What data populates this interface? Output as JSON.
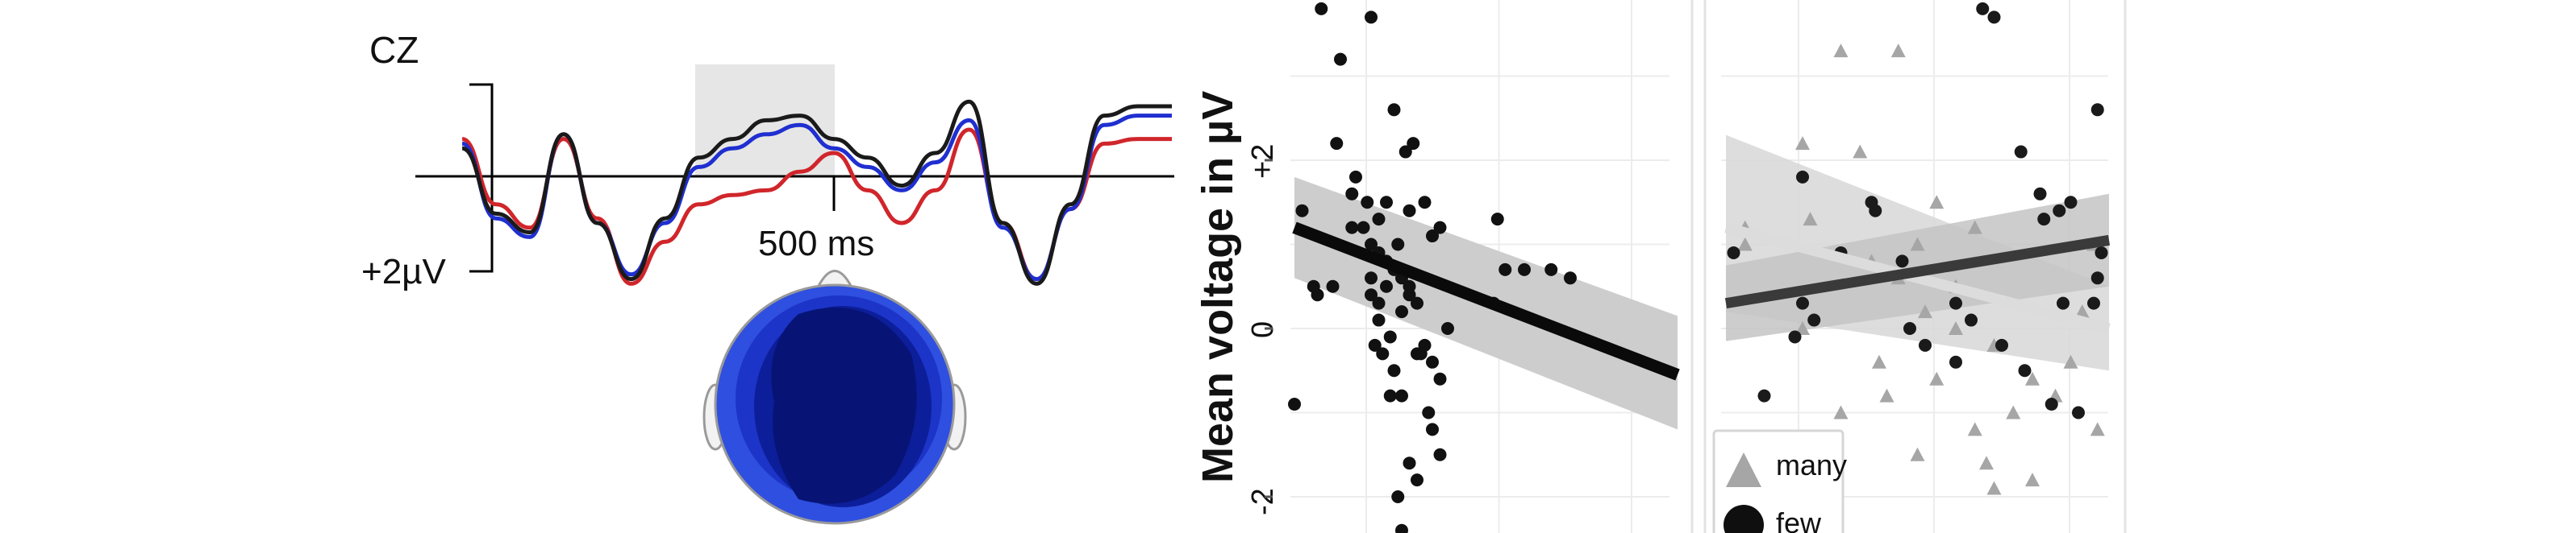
{
  "erp": {
    "electrode": "CZ",
    "scale_label": "+2µV",
    "time_label": "500 ms",
    "colors": {
      "black": "#1a1a1a",
      "blue": "#1f2fd0",
      "red": "#d0262b",
      "window": "#e6e6e6",
      "axis": "#000000"
    }
  },
  "topomap": {
    "colors": {
      "outer": "#2f4fe0",
      "mid": "#1c34c8",
      "inner": "#0d1e9a",
      "core": "#071476",
      "outline": "#9a9a9a"
    }
  },
  "chart_data": [
    {
      "type": "line",
      "panel": "ERP waveform at CZ",
      "xlabel": "",
      "ylabel": "",
      "x_ms": [
        -50,
        0,
        50,
        100,
        150,
        200,
        250,
        300,
        350,
        400,
        450,
        500,
        550,
        600,
        650,
        700,
        750,
        800,
        850,
        900,
        950,
        1000
      ],
      "series": [
        {
          "color": "#1a1a1a",
          "values": [
            0.6,
            -0.8,
            -1.2,
            0.9,
            -1.0,
            -2.2,
            -0.9,
            0.4,
            0.8,
            1.2,
            1.3,
            0.8,
            0.4,
            -0.2,
            0.5,
            1.6,
            -1.0,
            -2.3,
            -0.6,
            1.3,
            1.5,
            1.5
          ]
        },
        {
          "color": "#1f2fd0",
          "values": [
            0.7,
            -0.9,
            -1.3,
            0.9,
            -1.0,
            -2.1,
            -1.0,
            0.2,
            0.6,
            0.9,
            1.1,
            0.6,
            0.2,
            -0.3,
            0.3,
            1.2,
            -1.1,
            -2.2,
            -0.7,
            1.1,
            1.3,
            1.3
          ]
        },
        {
          "color": "#d0262b",
          "values": [
            0.8,
            -0.6,
            -1.1,
            0.8,
            -0.9,
            -2.3,
            -1.4,
            -0.6,
            -0.4,
            -0.3,
            0.1,
            0.5,
            -0.3,
            -1.0,
            -0.3,
            1.0,
            -1.0,
            -2.2,
            -0.7,
            0.7,
            0.8,
            0.8
          ]
        }
      ],
      "highlight_window_ms": [
        300,
        500
      ]
    },
    {
      "type": "scatter",
      "panel": "left regression",
      "ylabel": "Mean voltage in µV",
      "yticks": [
        "-2",
        "0",
        "+2"
      ],
      "ylim": [
        -2.4,
        3.9
      ],
      "xlim": [
        0,
        1
      ],
      "grid": true,
      "points": [
        [
          0.07,
          3.8
        ],
        [
          0.2,
          3.7
        ],
        [
          0.12,
          3.2
        ],
        [
          0.11,
          2.2
        ],
        [
          0.16,
          1.8
        ],
        [
          0.15,
          1.6
        ],
        [
          0.26,
          2.6
        ],
        [
          0.29,
          2.1
        ],
        [
          0.31,
          2.2
        ],
        [
          0.02,
          1.4
        ],
        [
          0.06,
          0.4
        ],
        [
          0.1,
          0.5
        ],
        [
          0.05,
          0.5
        ],
        [
          0.15,
          1.2
        ],
        [
          0.18,
          1.2
        ],
        [
          0.2,
          1.0
        ],
        [
          0.22,
          0.9
        ],
        [
          0.24,
          1.5
        ],
        [
          0.27,
          1.0
        ],
        [
          0.3,
          1.4
        ],
        [
          0.34,
          1.5
        ],
        [
          0.36,
          1.1
        ],
        [
          0.38,
          1.2
        ],
        [
          0.2,
          0.6
        ],
        [
          0.22,
          0.3
        ],
        [
          0.24,
          0.5
        ],
        [
          0.22,
          0.1
        ],
        [
          0.25,
          -0.1
        ],
        [
          0.28,
          0.2
        ],
        [
          0.2,
          0.4
        ],
        [
          0.21,
          -0.2
        ],
        [
          0.23,
          -0.3
        ],
        [
          0.26,
          -0.5
        ],
        [
          0.3,
          0.4
        ],
        [
          0.32,
          -0.3
        ],
        [
          0.34,
          -0.2
        ],
        [
          0.36,
          -0.4
        ],
        [
          0.38,
          -0.6
        ],
        [
          0.28,
          -0.8
        ],
        [
          0.25,
          -0.8
        ],
        [
          0.35,
          -1.0
        ],
        [
          0.36,
          -1.2
        ],
        [
          0.38,
          -1.5
        ],
        [
          0.3,
          -1.6
        ],
        [
          0.32,
          -1.8
        ],
        [
          0.27,
          -2.0
        ],
        [
          0.28,
          -2.4
        ],
        [
          0.33,
          -0.3
        ],
        [
          0.24,
          0.8
        ],
        [
          0.26,
          0.7
        ],
        [
          0.28,
          0.6
        ],
        [
          0.3,
          0.5
        ],
        [
          0.32,
          0.3
        ],
        [
          0.55,
          0.7
        ],
        [
          0.52,
          0.3
        ],
        [
          0.6,
          0.7
        ],
        [
          0.53,
          1.3
        ],
        [
          0.67,
          0.7
        ],
        [
          0.72,
          0.6
        ],
        [
          0.0,
          -0.9
        ],
        [
          0.19,
          1.5
        ],
        [
          0.22,
          1.3
        ],
        [
          0.4,
          0.0
        ]
      ],
      "fit": {
        "x": [
          0,
          1
        ],
        "y": [
          1.2,
          -0.55
        ],
        "ci_upper": [
          1.8,
          0.15
        ],
        "ci_lower": [
          0.6,
          -1.2
        ]
      }
    },
    {
      "type": "scatter",
      "panel": "right regression",
      "legend": [
        "many",
        "few"
      ],
      "legend_position": "bottom-left",
      "grid": true,
      "ylim": [
        -2.4,
        3.9
      ],
      "xlim": [
        0,
        1
      ],
      "series": [
        {
          "name": "many",
          "marker": "triangle",
          "color": "#a6a6a6",
          "points": [
            [
              0.3,
              3.3
            ],
            [
              0.45,
              3.3
            ],
            [
              0.2,
              2.2
            ],
            [
              0.35,
              2.1
            ],
            [
              0.22,
              1.3
            ],
            [
              0.05,
              1.2
            ],
            [
              0.38,
              0.8
            ],
            [
              0.45,
              0.6
            ],
            [
              0.5,
              1.0
            ],
            [
              0.52,
              0.2
            ],
            [
              0.6,
              0.0
            ],
            [
              0.65,
              1.2
            ],
            [
              0.7,
              -0.2
            ],
            [
              0.8,
              -0.6
            ],
            [
              0.86,
              -0.8
            ],
            [
              0.9,
              -0.4
            ],
            [
              0.75,
              -1.0
            ],
            [
              0.65,
              -1.2
            ],
            [
              0.68,
              -1.6
            ],
            [
              0.7,
              -1.9
            ],
            [
              0.3,
              -1.0
            ],
            [
              0.42,
              -0.8
            ],
            [
              0.55,
              -0.6
            ],
            [
              0.93,
              0.2
            ],
            [
              0.96,
              1.0
            ],
            [
              0.6,
              0.5
            ],
            [
              0.4,
              -0.4
            ],
            [
              0.8,
              -1.8
            ],
            [
              0.5,
              -1.5
            ],
            [
              0.2,
              0.0
            ],
            [
              0.05,
              1.0
            ],
            [
              0.55,
              1.5
            ],
            [
              0.97,
              -1.2
            ]
          ]
        },
        {
          "name": "few",
          "marker": "circle",
          "color": "#1a1a1a",
          "points": [
            [
              0.67,
              3.8
            ],
            [
              0.7,
              3.7
            ],
            [
              0.97,
              2.6
            ],
            [
              0.77,
              2.1
            ],
            [
              0.2,
              1.8
            ],
            [
              0.82,
              1.6
            ],
            [
              0.39,
              1.4
            ],
            [
              0.38,
              1.5
            ],
            [
              0.87,
              1.4
            ],
            [
              0.83,
              1.3
            ],
            [
              0.9,
              1.5
            ],
            [
              0.02,
              0.9
            ],
            [
              0.3,
              0.9
            ],
            [
              0.46,
              0.8
            ],
            [
              0.6,
              0.3
            ],
            [
              0.64,
              0.1
            ],
            [
              0.2,
              0.3
            ],
            [
              0.23,
              0.1
            ],
            [
              0.18,
              -0.1
            ],
            [
              0.48,
              0.0
            ],
            [
              0.52,
              -0.2
            ],
            [
              0.6,
              -0.4
            ],
            [
              0.88,
              0.3
            ],
            [
              0.96,
              0.3
            ],
            [
              0.97,
              0.6
            ],
            [
              0.98,
              0.9
            ],
            [
              0.78,
              -0.5
            ],
            [
              0.72,
              -0.2
            ],
            [
              0.1,
              -0.8
            ],
            [
              0.85,
              -0.9
            ],
            [
              0.92,
              -1.0
            ]
          ]
        }
      ],
      "fits": [
        {
          "name": "few",
          "x": [
            0,
            1
          ],
          "y": [
            0.3,
            1.05
          ],
          "ci_upper": [
            0.75,
            1.6
          ],
          "ci_lower": [
            -0.15,
            0.5
          ],
          "color": "#3a3a3a"
        },
        {
          "name": "many",
          "x": [
            0,
            1
          ],
          "y": [
            1.2,
            0.0
          ],
          "ci_upper": [
            2.3,
            0.5
          ],
          "ci_lower": [
            0.2,
            -0.5
          ],
          "color": "#d0d0d0"
        }
      ]
    }
  ]
}
